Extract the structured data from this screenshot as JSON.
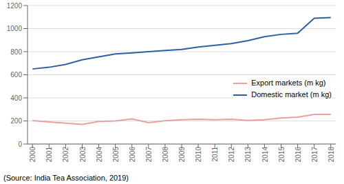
{
  "chart_data": {
    "type": "line",
    "x": [
      2000,
      2001,
      2002,
      2003,
      2004,
      2005,
      2006,
      2007,
      2008,
      2009,
      2010,
      2011,
      2012,
      2013,
      2014,
      2015,
      2016,
      2017,
      2018
    ],
    "xlim": [
      1999.7,
      2018.3
    ],
    "xticks": [
      2000,
      2001,
      2002,
      2003,
      2004,
      2005,
      2006,
      2007,
      2008,
      2009,
      2010,
      2011,
      2012,
      2013,
      2014,
      2015,
      2016,
      2017,
      2018
    ],
    "ylim": [
      0,
      1200
    ],
    "yticks": [
      0,
      200,
      400,
      600,
      800,
      1000,
      1200
    ],
    "series": [
      {
        "name": "Export markets (m kg)",
        "color": "#e8a0a0",
        "values": [
          203,
          191,
          180,
          170,
          195,
          200,
          218,
          185,
          202,
          210,
          215,
          210,
          215,
          205,
          210,
          225,
          233,
          256,
          256
        ]
      },
      {
        "name": "Domestic market (m kg)",
        "color": "#2e5fa3",
        "values": [
          650,
          665,
          690,
          730,
          755,
          780,
          790,
          800,
          810,
          820,
          840,
          855,
          870,
          895,
          930,
          950,
          960,
          1090,
          1095
        ]
      }
    ],
    "grid": true,
    "legend": "right",
    "annotations": [
      "(Source: India Tea Association, 2019)"
    ]
  }
}
